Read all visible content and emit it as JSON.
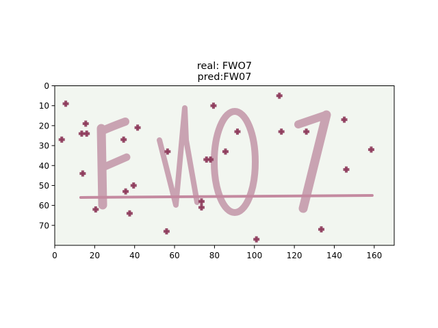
{
  "figure": {
    "title_line1": "real: FWO7",
    "title_line2": "pred:FW07"
  },
  "chart_data": {
    "type": "image",
    "title": "real: FWO7\npred:FW07",
    "image_content": "captcha",
    "captcha_text": "FWO7",
    "xlim": [
      0,
      170
    ],
    "ylim": [
      80,
      0
    ],
    "y_axis_inverted": true,
    "xticks": [
      0,
      20,
      40,
      60,
      80,
      100,
      120,
      140,
      160
    ],
    "yticks": [
      0,
      10,
      20,
      30,
      40,
      50,
      60,
      70
    ],
    "grid": false,
    "colors": {
      "background": "#f2f6f0",
      "glyph": "#c9a3b2",
      "strike": "#c48aa0",
      "noise_dot": "#8e3c5c"
    },
    "noise_points": [
      {
        "x": 5.5,
        "y": 9
      },
      {
        "x": 3.5,
        "y": 27
      },
      {
        "x": 13.5,
        "y": 24
      },
      {
        "x": 16,
        "y": 24
      },
      {
        "x": 15.5,
        "y": 19
      },
      {
        "x": 14,
        "y": 44
      },
      {
        "x": 20.5,
        "y": 62
      },
      {
        "x": 34.5,
        "y": 27
      },
      {
        "x": 35.5,
        "y": 53
      },
      {
        "x": 39.5,
        "y": 50
      },
      {
        "x": 41.5,
        "y": 21
      },
      {
        "x": 37.5,
        "y": 64
      },
      {
        "x": 56.5,
        "y": 33
      },
      {
        "x": 56,
        "y": 73
      },
      {
        "x": 73.5,
        "y": 58
      },
      {
        "x": 73.5,
        "y": 61
      },
      {
        "x": 76,
        "y": 37
      },
      {
        "x": 78,
        "y": 37
      },
      {
        "x": 79.5,
        "y": 10
      },
      {
        "x": 85.5,
        "y": 33
      },
      {
        "x": 91.5,
        "y": 23
      },
      {
        "x": 101,
        "y": 77
      },
      {
        "x": 112.5,
        "y": 5
      },
      {
        "x": 113.5,
        "y": 23
      },
      {
        "x": 126,
        "y": 23
      },
      {
        "x": 133.5,
        "y": 72
      },
      {
        "x": 145,
        "y": 17
      },
      {
        "x": 146,
        "y": 42
      },
      {
        "x": 158.5,
        "y": 32
      }
    ],
    "strike_line": {
      "x": [
        13,
        159
      ],
      "y": [
        56,
        55
      ]
    }
  }
}
